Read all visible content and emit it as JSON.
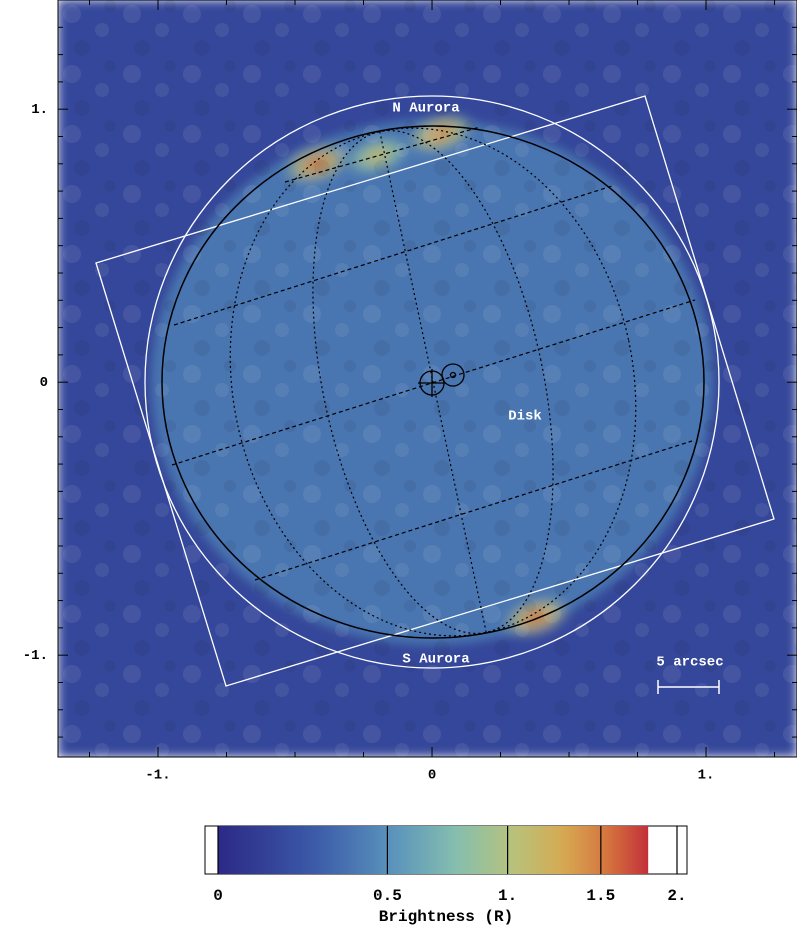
{
  "chart_data": {
    "type": "image",
    "xlim": [
      -1.365,
      1.332
    ],
    "ylim": [
      -1.373,
      1.4
    ],
    "xticks": [
      {
        "value": -1,
        "label": "-1."
      },
      0,
      {
        "value": 1,
        "label": "1."
      }
    ],
    "yticks": [
      {
        "value": -1,
        "label": "-1."
      },
      0,
      {
        "value": 1,
        "label": "1."
      }
    ],
    "xminor": [
      -1.25,
      -0.75,
      -0.5,
      -0.25,
      0.25,
      0.5,
      0.75,
      1.25
    ],
    "yminor": [
      -1.3,
      -1.2,
      -1.1,
      -0.9,
      -0.8,
      -0.7,
      -0.6,
      -0.5,
      -0.4,
      -0.3,
      -0.2,
      -0.1,
      0.1,
      0.2,
      0.3,
      0.4,
      0.5,
      0.6,
      0.7,
      0.8,
      0.9,
      1.1,
      1.2,
      1.3
    ],
    "background_level": 0.15,
    "disk_level": 0.4,
    "spots": {
      "x": [
        -0.42,
        -0.2,
        0.03,
        0.38
      ],
      "y": [
        0.8,
        0.83,
        0.91,
        -0.86
      ],
      "values": [
        1.6,
        1.2,
        1.5,
        1.6
      ]
    },
    "annotations": [
      "N Aurora",
      "Disk",
      "S Aurora",
      "5 arcsec"
    ],
    "colorbar": {
      "label": "Brightness (R)",
      "lim": [
        0,
        2
      ],
      "max": 1.8,
      "scale": "log1p",
      "ticks": [
        0,
        0.5,
        {
          "value": 1,
          "label": "1."
        },
        1.5,
        {
          "value": 2,
          "label": "2."
        }
      ],
      "colormap": [
        "#2c2a86",
        "#3b5aa8",
        "#5a93bc",
        "#86bfae",
        "#b8c27a",
        "#d6a952",
        "#d5733e",
        "#c2303a"
      ]
    }
  }
}
